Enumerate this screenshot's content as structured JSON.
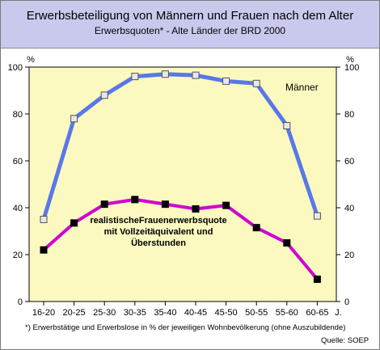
{
  "header": {
    "title": "Erwerbsbeteiligung von Männern und Frauen nach dem Alter",
    "subtitle": "Erwerbsquoten* - Alte Länder der BRD 2000"
  },
  "footer": {
    "footnote": "*) Erwerbstätige und Erwerbslose in % der jeweiligen Wohnbevölkerung (ohne Auszubildende)",
    "source": "Quelle: SOEP"
  },
  "colors": {
    "header_bg": "#c9c9ee",
    "plot_bg": "#fbf9c0",
    "men_line": "#5a78e8",
    "women_line": "#d000d0",
    "marker_men": "#e8e8e8",
    "marker_women": "#000000"
  },
  "chart_data": {
    "type": "line",
    "ylim": [
      0,
      100
    ],
    "yticks": [
      0,
      20,
      40,
      60,
      80,
      100
    ],
    "ylabel_left": "%",
    "ylabel_right": "%",
    "x_unit": "J.",
    "categories": [
      "16-20",
      "20-25",
      "25-30",
      "30-35",
      "35-40",
      "40-45",
      "45-50",
      "50-55",
      "55-60",
      "60-65"
    ],
    "series": [
      {
        "name": "Männer",
        "values": [
          35,
          78,
          88,
          96,
          97,
          96.5,
          94,
          93,
          75,
          36.5
        ]
      },
      {
        "name": "realistischeFrauenerwerbsquote mit Vollzeitäquivalent und Überstunden",
        "values": [
          22,
          33.5,
          41.5,
          43.5,
          41.5,
          39.5,
          41,
          31.5,
          25,
          9.5
        ]
      }
    ],
    "grid": false
  }
}
